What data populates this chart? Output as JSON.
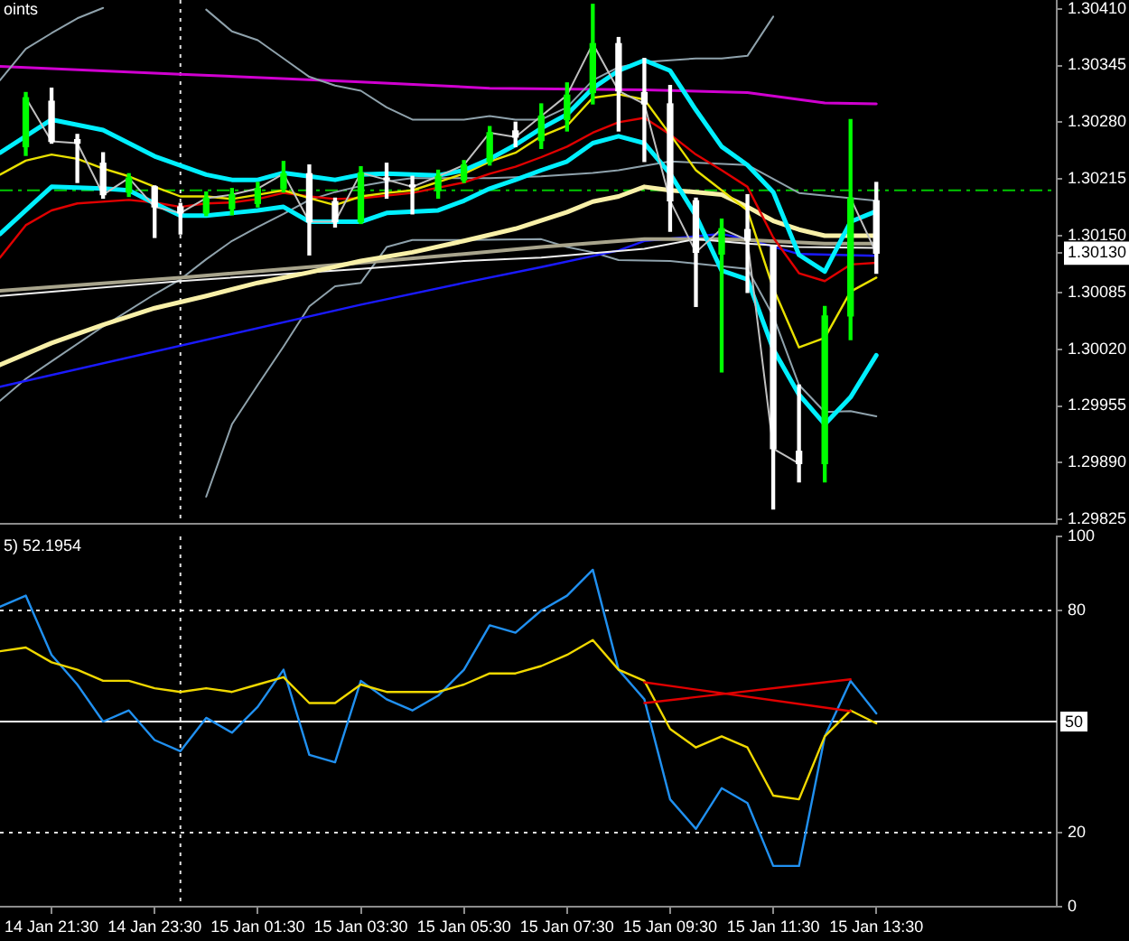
{
  "chart_data": [
    {
      "type": "candlestick",
      "annotations": [
        "oints"
      ],
      "x": [
        "--01-14T21:00",
        "--01-14T21:30",
        "--01-14T22:00",
        "--01-14T22:30",
        "--01-14T23:00",
        "--01-14T23:30",
        "--01-15T00:00",
        "--01-15T00:30",
        "--01-15T01:00",
        "--01-15T01:30",
        "--01-15T02:00",
        "--01-15T02:30",
        "--01-15T03:00",
        "--01-15T03:30",
        "--01-15T04:00",
        "--01-15T04:30",
        "--01-15T05:00",
        "--01-15T05:30",
        "--01-15T06:00",
        "--01-15T06:30",
        "--01-15T07:00",
        "--01-15T07:30",
        "--01-15T08:00",
        "--01-15T08:30",
        "--01-15T09:00",
        "--01-15T09:30",
        "--01-15T10:00",
        "--01-15T10:30",
        "--01-15T11:00",
        "--01-15T11:30",
        "--01-15T12:00",
        "--01-15T12:30",
        "--01-15T13:00",
        "--01-15T13:30"
      ],
      "ohlc": [
        [
          1.30252,
          1.30314,
          1.30242,
          1.30308
        ],
        [
          1.30304,
          1.30319,
          1.30256,
          1.30258
        ],
        [
          1.3026,
          1.30266,
          1.30211,
          1.30256
        ],
        [
          1.30233,
          1.30245,
          1.30193,
          1.30197
        ],
        [
          1.302,
          1.30221,
          1.30195,
          1.30216
        ],
        [
          1.30206,
          1.30207,
          1.30148,
          1.30183
        ],
        [
          1.30183,
          1.30187,
          1.30152,
          1.30176
        ],
        [
          1.30176,
          1.302,
          1.30173,
          1.30193
        ],
        [
          1.30181,
          1.30204,
          1.30174,
          1.30197
        ],
        [
          1.30187,
          1.30211,
          1.30183,
          1.30204
        ],
        [
          1.30204,
          1.30235,
          1.302,
          1.30221
        ],
        [
          1.30221,
          1.30231,
          1.30128,
          1.30166
        ],
        [
          1.30189,
          1.30193,
          1.3016,
          1.30166
        ],
        [
          1.30166,
          1.30229,
          1.30164,
          1.30222
        ],
        [
          1.30216,
          1.30233,
          1.30193,
          1.30214
        ],
        [
          1.30208,
          1.30218,
          1.30175,
          1.30206
        ],
        [
          1.30202,
          1.30225,
          1.30193,
          1.30218
        ],
        [
          1.30214,
          1.30236,
          1.30211,
          1.30231
        ],
        [
          1.30235,
          1.30275,
          1.30231,
          1.30268
        ],
        [
          1.3027,
          1.3028,
          1.30252,
          1.30263
        ],
        [
          1.30259,
          1.30301,
          1.3025,
          1.30287
        ],
        [
          1.30283,
          1.30325,
          1.3027,
          1.30311
        ],
        [
          1.30314,
          1.30415,
          1.30301,
          1.3037
        ],
        [
          1.3037,
          1.30377,
          1.3027,
          1.30316
        ],
        [
          1.30314,
          1.30353,
          1.30235,
          1.30301
        ],
        [
          1.30301,
          1.30322,
          1.30155,
          1.3019
        ],
        [
          1.3019,
          1.30193,
          1.30069,
          1.30131
        ],
        [
          1.30129,
          1.30169,
          1.29994,
          1.30158
        ],
        [
          1.30157,
          1.30197,
          1.30085,
          1.30145
        ],
        [
          1.30138,
          1.30138,
          1.29837,
          1.29906
        ],
        [
          1.29903,
          1.29979,
          1.29868,
          1.29889
        ],
        [
          1.29889,
          1.30069,
          1.29868,
          1.30058
        ],
        [
          1.30058,
          1.30283,
          1.30031,
          1.30193
        ],
        [
          1.3019,
          1.30211,
          1.30107,
          1.3013
        ]
      ],
      "colors": [
        "#00ff00",
        "#ffffff",
        "#ffffff",
        "#ffffff",
        "#00ff00",
        "#ffffff",
        "#ffffff",
        "#00ff00",
        "#00ff00",
        "#00ff00",
        "#00ff00",
        "#ffffff",
        "#ffffff",
        "#00ff00",
        "#ffffff",
        "#ffffff",
        "#00ff00",
        "#00ff00",
        "#00ff00",
        "#ffffff",
        "#00ff00",
        "#00ff00",
        "#00ff00",
        "#ffffff",
        "#ffffff",
        "#ffffff",
        "#ffffff",
        "#00ff00",
        "#ffffff",
        "#ffffff",
        "#ffffff",
        "#00ff00",
        "#00ff00",
        "#ffffff"
      ],
      "series": [
        {
          "type": "line",
          "color": "#d000d0",
          "x": [
            "--01-14T20:30",
            "--01-15T00:00",
            "--01-15T03:30",
            "--01-15T06:00",
            "--01-15T09:00",
            "--01-15T11:00",
            "--01-15T12:30",
            "--01-15T13:30"
          ],
          "values": [
            1.30344,
            1.30335,
            1.30326,
            1.30319,
            1.30317,
            1.30314,
            1.30302,
            1.30301
          ]
        },
        {
          "type": "line",
          "color": "#8fa2ac",
          "x": [
            "--01-14T20:30",
            "--01-14T21:00",
            "--01-14T21:30",
            "--01-14T22:00",
            "--01-14T22:30",
            "--01-14T23:00",
            "--01-14T23:30",
            "--01-15T00:00",
            "--01-15T00:30",
            "--01-15T01:00",
            "--01-15T01:30",
            "--01-15T02:00",
            "--01-15T02:30",
            "--01-15T03:00",
            "--01-15T03:30",
            "--01-15T04:00",
            "--01-15T04:30",
            "--01-15T05:00",
            "--01-15T05:30",
            "--01-15T06:00",
            "--01-15T06:30",
            "--01-15T07:00",
            "--01-15T07:30",
            "--01-15T08:00",
            "--01-15T08:30",
            "--01-15T09:00",
            "--01-15T09:30",
            "--01-15T10:00",
            "--01-15T10:30",
            "--01-15T11:00",
            "--01-15T11:30"
          ],
          "values": [
            1.30328,
            1.30364,
            1.30382,
            1.30399,
            1.30411,
            null,
            null,
            null,
            1.30409,
            1.30384,
            1.30374,
            1.30353,
            1.30332,
            1.30322,
            1.30316,
            1.30297,
            1.30283,
            1.30283,
            1.30283,
            1.30287,
            1.30283,
            1.30283,
            1.30297,
            1.30328,
            1.30343,
            1.30349,
            1.30351,
            1.30353,
            1.30353,
            1.30356,
            1.30401
          ]
        },
        {
          "type": "line",
          "color": "#8fa2ac",
          "x": [
            "--01-14T20:30",
            "--01-14T21:00",
            "--01-14T21:30",
            "--01-14T22:30",
            "--01-14T23:30",
            "--01-15T00:00",
            "--01-15T00:30",
            "--01-15T01:00",
            "--01-15T01:30",
            "--01-15T02:00",
            "--01-15T02:30",
            "--01-15T03:00",
            "--01-15T03:30",
            "--01-15T04:00",
            "--01-15T04:30",
            "--01-15T06:00",
            "--01-15T07:00",
            "--01-15T08:00",
            "--01-15T08:30",
            "--01-15T09:30",
            "--01-15T11:00",
            "--01-15T12:00",
            "--01-15T13:30"
          ],
          "values": [
            1.29961,
            1.29986,
            1.30006,
            1.30046,
            1.30083,
            1.301,
            1.30123,
            1.30144,
            1.3016,
            1.30175,
            1.30191,
            1.302,
            1.30207,
            1.30212,
            1.30216,
            1.30216,
            1.30218,
            1.30222,
            1.30225,
            1.30235,
            1.30231,
            1.30199,
            1.3019
          ]
        },
        {
          "type": "line",
          "color": "#8fa2ac",
          "x": [
            "--01-15T00:30",
            "--01-15T01:00",
            "--01-15T01:30",
            "--01-15T02:00",
            "--01-15T02:30",
            "--01-15T03:00",
            "--01-15T03:30",
            "--01-15T04:00",
            "--01-15T04:30",
            "--01-15T05:30",
            "--01-15T07:00",
            "--01-15T07:30",
            "--01-15T08:00",
            "--01-15T08:30",
            "--01-15T09:30",
            "--01-15T11:00",
            "--01-15T11:30",
            "--01-15T12:00",
            "--01-15T12:30",
            "--01-15T13:00",
            "--01-15T13:30"
          ],
          "values": [
            1.29851,
            1.29934,
            1.29979,
            1.30023,
            1.30069,
            1.30092,
            1.30096,
            1.30137,
            1.30145,
            1.30145,
            1.30146,
            1.30137,
            1.30131,
            1.30122,
            1.30121,
            1.30112,
            1.30058,
            1.29979,
            1.29948,
            1.29949,
            1.29943
          ]
        },
        {
          "type": "line",
          "color": "#1a1aff",
          "x": [
            "--01-14T20:30",
            "--01-15T03:30",
            "--01-15T05:30",
            "--01-15T07:00",
            "--01-15T08:30",
            "--01-15T09:00",
            "--01-15T10:30",
            "--01-15T11:00",
            "--01-15T12:00",
            "--01-15T13:30"
          ],
          "values": [
            1.29977,
            1.30071,
            1.30096,
            1.30114,
            1.30133,
            1.30144,
            1.30152,
            1.30146,
            1.30129,
            1.30127
          ]
        },
        {
          "type": "line",
          "color": "#a8a48c",
          "x": [
            "--01-14T20:30",
            "--01-15T00:00",
            "--01-15T03:30",
            "--01-15T05:30",
            "--01-15T07:00",
            "--01-15T09:00",
            "--01-15T10:30",
            "--01-15T11:00",
            "--01-15T12:30",
            "--01-15T13:30"
          ],
          "values": [
            1.30087,
            1.30102,
            1.30119,
            1.30129,
            1.30137,
            1.30146,
            1.30146,
            1.30145,
            1.30141,
            1.30141
          ]
        },
        {
          "type": "line",
          "color": "#f0f0f0",
          "x": [
            "--01-14T20:30",
            "--01-15T00:00",
            "--01-15T03:30",
            "--01-15T05:30",
            "--01-15T07:00",
            "--01-15T09:00",
            "--01-15T10:00",
            "--01-15T11:00",
            "--01-15T12:00",
            "--01-15T13:30"
          ],
          "values": [
            1.30081,
            1.30098,
            1.30112,
            1.30121,
            1.30125,
            1.30135,
            1.30146,
            1.30141,
            1.30137,
            1.30136
          ]
        },
        {
          "type": "line",
          "color": "#f8f0a8",
          "x": [
            "--01-14T20:30",
            "--01-14T21:30",
            "--01-14T22:30",
            "--01-14T23:30",
            "--01-15T00:30",
            "--01-15T01:30",
            "--01-15T02:30",
            "--01-15T03:30",
            "--01-15T04:30",
            "--01-15T05:30",
            "--01-15T06:30",
            "--01-15T07:30",
            "--01-15T08:00",
            "--01-15T08:30",
            "--01-15T09:00",
            "--01-15T09:30",
            "--01-15T10:00",
            "--01-15T10:30",
            "--01-15T11:00",
            "--01-15T11:30",
            "--01-15T12:00",
            "--01-15T12:30",
            "--01-15T13:00",
            "--01-15T13:30"
          ],
          "values": [
            1.30002,
            1.30027,
            1.30048,
            1.30067,
            1.30081,
            1.30096,
            1.30108,
            1.30121,
            1.30131,
            1.30144,
            1.30158,
            1.30177,
            1.30189,
            1.30195,
            1.30206,
            1.30202,
            1.302,
            1.30197,
            1.30183,
            1.30167,
            1.30157,
            1.3015,
            1.3015,
            1.3015
          ]
        },
        {
          "type": "line",
          "color": "#e00000",
          "x": [
            "--01-14T20:30",
            "--01-14T21:00",
            "--01-14T21:30",
            "--01-14T22:00",
            "--01-14T23:00",
            "--01-14T23:30",
            "--01-15T00:00",
            "--01-15T00:30",
            "--01-15T01:00",
            "--01-15T01:30",
            "--01-15T02:00",
            "--01-15T02:30",
            "--01-15T03:00",
            "--01-15T03:30",
            "--01-15T04:30",
            "--01-15T05:30",
            "--01-15T06:00",
            "--01-15T06:30",
            "--01-15T07:00",
            "--01-15T07:30",
            "--01-15T08:00",
            "--01-15T08:30",
            "--01-15T09:00",
            "--01-15T09:30",
            "--01-15T10:00",
            "--01-15T10:30",
            "--01-15T11:00",
            "--01-15T11:30",
            "--01-15T12:00",
            "--01-15T12:30",
            "--01-15T13:00",
            "--01-15T13:30"
          ],
          "values": [
            1.30125,
            1.30162,
            1.30179,
            1.30187,
            1.30191,
            1.30188,
            1.30183,
            1.30187,
            1.30188,
            1.30192,
            1.30199,
            1.30195,
            1.30192,
            1.30193,
            1.30199,
            1.30211,
            1.30221,
            1.30229,
            1.3024,
            1.30252,
            1.30268,
            1.3028,
            1.30285,
            1.30266,
            1.30243,
            1.30225,
            1.30206,
            1.30148,
            1.30107,
            1.30098,
            1.30117,
            1.30119
          ]
        },
        {
          "type": "line",
          "color": "#e8e000",
          "x": [
            "--01-14T20:30",
            "--01-14T21:00",
            "--01-14T21:30",
            "--01-14T22:00",
            "--01-14T22:30",
            "--01-14T23:00",
            "--01-14T23:30",
            "--01-15T00:00",
            "--01-15T00:30",
            "--01-15T01:00",
            "--01-15T01:30",
            "--01-15T02:00",
            "--01-15T02:30",
            "--01-15T03:00",
            "--01-15T03:30",
            "--01-15T04:00",
            "--01-15T04:30",
            "--01-15T05:30",
            "--01-15T06:00",
            "--01-15T06:30",
            "--01-15T07:00",
            "--01-15T07:30",
            "--01-15T08:00",
            "--01-15T08:30",
            "--01-15T09:00",
            "--01-15T09:30",
            "--01-15T10:00",
            "--01-15T10:30",
            "--01-15T11:00",
            "--01-15T11:30",
            "--01-15T12:00",
            "--01-15T12:30",
            "--01-15T13:00",
            "--01-15T13:30"
          ],
          "values": [
            1.3022,
            1.30236,
            1.30243,
            1.30238,
            1.30227,
            1.30218,
            1.30206,
            1.30195,
            1.30195,
            1.30192,
            1.30197,
            1.30202,
            1.30193,
            1.30185,
            1.30195,
            1.30199,
            1.30202,
            1.30221,
            1.30235,
            1.30245,
            1.30264,
            1.30276,
            1.30308,
            1.30312,
            1.30306,
            1.30266,
            1.30225,
            1.30202,
            1.30179,
            1.3009,
            1.30022,
            1.30033,
            1.30086,
            1.30102
          ]
        },
        {
          "type": "line",
          "color": "#00f0ff",
          "x": [
            "--01-14T20:30",
            "--01-14T21:30",
            "--01-14T22:30",
            "--01-14T23:30",
            "--01-15T00:30",
            "--01-15T01:00",
            "--01-15T01:30",
            "--01-15T02:00",
            "--01-15T02:30",
            "--01-15T03:00",
            "--01-15T03:30",
            "--01-15T04:00",
            "--01-15T05:00",
            "--01-15T05:30",
            "--01-15T06:00",
            "--01-15T06:30",
            "--01-15T07:00",
            "--01-15T07:30",
            "--01-15T08:00",
            "--01-15T08:30",
            "--01-15T09:00",
            "--01-15T09:30",
            "--01-15T10:00",
            "--01-15T10:30",
            "--01-15T11:00",
            "--01-15T11:30",
            "--01-15T12:00",
            "--01-15T12:30",
            "--01-15T13:00",
            "--01-15T13:30"
          ],
          "values": [
            1.30245,
            1.30283,
            1.30271,
            1.30241,
            1.3022,
            1.30214,
            1.30214,
            1.30222,
            1.30218,
            1.30214,
            1.3022,
            1.30221,
            1.30219,
            1.30225,
            1.30238,
            1.30254,
            1.30273,
            1.30289,
            1.30319,
            1.30339,
            1.30351,
            1.30339,
            1.30294,
            1.30252,
            1.30231,
            1.302,
            1.30128,
            1.30109,
            1.30166,
            1.30178
          ]
        },
        {
          "type": "line",
          "color": "#00f0ff",
          "x": [
            "--01-14T20:30",
            "--01-14T21:00",
            "--01-14T21:30",
            "--01-14T22:30",
            "--01-14T23:00",
            "--01-14T23:30",
            "--01-15T00:00",
            "--01-15T00:30",
            "--01-15T01:00",
            "--01-15T01:30",
            "--01-15T02:00",
            "--01-15T02:30",
            "--01-15T03:00",
            "--01-15T03:30",
            "--01-15T04:00",
            "--01-15T05:00",
            "--01-15T05:30",
            "--01-15T06:00",
            "--01-15T06:30",
            "--01-15T07:00",
            "--01-15T07:30",
            "--01-15T08:00",
            "--01-15T08:30",
            "--01-15T09:00",
            "--01-15T09:30",
            "--01-15T10:00",
            "--01-15T10:30",
            "--01-15T11:00",
            "--01-15T11:30",
            "--01-15T12:00",
            "--01-15T12:30",
            "--01-15T13:00",
            "--01-15T13:30"
          ],
          "values": [
            1.30152,
            1.30179,
            1.30206,
            1.30204,
            1.30202,
            1.30187,
            1.30173,
            1.30173,
            1.30176,
            1.30179,
            1.30183,
            1.30166,
            1.30166,
            1.30166,
            1.30176,
            1.30179,
            1.3019,
            1.30204,
            1.30214,
            1.30225,
            1.30235,
            1.30256,
            1.30264,
            1.30256,
            1.30221,
            1.30173,
            1.3011,
            1.301,
            1.3002,
            1.29968,
            1.29934,
            1.29965,
            1.30013
          ]
        },
        {
          "type": "line",
          "color": "#c0c0c0",
          "values": [
            1.30308,
            1.30258,
            1.30256,
            1.30197,
            1.30216,
            1.30183,
            1.30176,
            1.30193,
            1.30197,
            1.30204,
            1.30221,
            1.30166,
            1.30166,
            1.30222,
            1.30214,
            1.30206,
            1.30218,
            1.30231,
            1.30268,
            1.30263,
            1.30287,
            1.30311,
            1.3037,
            1.30316,
            1.30301,
            1.3019,
            1.30131,
            1.30158,
            1.30145,
            1.29906,
            1.29889,
            null,
            1.30193,
            1.3013
          ]
        }
      ],
      "xlim": [
        "--01-14T20:30",
        "--01-15T17:00"
      ],
      "ylim": [
        1.2982,
        1.3042
      ],
      "yticks": [
        {
          "value": 1.3041,
          "label": "1.30410"
        },
        1.30345,
        {
          "value": 1.3028,
          "label": "1.30280"
        },
        1.30215,
        {
          "value": 1.3015,
          "label": "1.30150"
        },
        {
          "value": 1.3013,
          "label": "1.30130"
        },
        1.30085,
        {
          "value": 1.3002,
          "label": "1.30020"
        },
        1.29955,
        {
          "value": 1.2989,
          "label": "1.29890"
        },
        1.29825
      ],
      "ref_lines": [
        {
          "axis": "y",
          "value": 1.30202,
          "color": "#00c800",
          "line_style": "dashed"
        },
        {
          "axis": "x",
          "value": "--01-15T00:00",
          "color": "#e0e0e0",
          "line_style": "dotted"
        }
      ],
      "tick_labels": "y"
    },
    {
      "type": "line",
      "annotations": [
        "5) 52.1954"
      ],
      "x": [
        "--01-14T20:30",
        "--01-14T21:00",
        "--01-14T21:30",
        "--01-14T22:00",
        "--01-14T22:30",
        "--01-14T23:00",
        "--01-14T23:30",
        "--01-15T00:00",
        "--01-15T00:30",
        "--01-15T01:00",
        "--01-15T01:30",
        "--01-15T02:00",
        "--01-15T02:30",
        "--01-15T03:00",
        "--01-15T03:30",
        "--01-15T04:00",
        "--01-15T04:30",
        "--01-15T05:00",
        "--01-15T05:30",
        "--01-15T06:00",
        "--01-15T06:30",
        "--01-15T07:00",
        "--01-15T07:30",
        "--01-15T08:00",
        "--01-15T08:30",
        "--01-15T09:00",
        "--01-15T09:30",
        "--01-15T10:00",
        "--01-15T10:30",
        "--01-15T11:00",
        "--01-15T11:30",
        "--01-15T12:00",
        "--01-15T12:30",
        "--01-15T13:00",
        "--01-15T13:30"
      ],
      "series": [
        {
          "color": "#2090f0",
          "values": [
            81,
            84,
            68,
            60,
            50,
            53,
            45,
            42,
            51,
            47,
            54,
            64,
            41,
            39,
            61,
            56,
            53,
            57,
            64,
            76,
            74,
            80,
            84,
            91,
            64,
            56,
            29,
            21,
            32,
            28,
            11,
            11,
            46,
            61,
            52.2
          ]
        },
        {
          "color": "#f0d800",
          "values": [
            69,
            70,
            66,
            64,
            61,
            61,
            59,
            58,
            59,
            58,
            60,
            62,
            55,
            55,
            60,
            58,
            58,
            58,
            60,
            63,
            63,
            65,
            68,
            72,
            64,
            61,
            48,
            43,
            46,
            43,
            30,
            29,
            46,
            53,
            49.5
          ]
        },
        {
          "color": "#e00000",
          "x": [
            "--01-15T09:00",
            "--01-15T13:00"
          ],
          "values": [
            60.6,
            52.8
          ]
        },
        {
          "color": "#e00000",
          "x": [
            "--01-15T09:00",
            "--01-15T13:00"
          ],
          "values": [
            55,
            61.4
          ]
        }
      ],
      "xlim": [
        "--01-14T20:30",
        "--01-15T17:00"
      ],
      "ylim": [
        0,
        100
      ],
      "xticks": [
        {
          "value": "--01-14T21:30",
          "label": "14 Jan 21:30"
        },
        {
          "value": "--01-14T23:30",
          "label": "14 Jan 23:30"
        },
        {
          "value": "--01-15T01:30",
          "label": "15 Jan 01:30"
        },
        {
          "value": "--01-15T03:30",
          "label": "15 Jan 03:30"
        },
        {
          "value": "--01-15T05:30",
          "label": "15 Jan 05:30"
        },
        {
          "value": "--01-15T07:30",
          "label": "15 Jan 07:30"
        },
        {
          "value": "--01-15T09:30",
          "label": "15 Jan 09:30"
        },
        {
          "value": "--01-15T11:30",
          "label": "15 Jan 11:30"
        },
        {
          "value": "--01-15T13:30",
          "label": "15 Jan 13:30"
        }
      ],
      "yticks": [
        0,
        20,
        80,
        100
      ],
      "ref_lines": [
        {
          "axis": "y",
          "value": 80,
          "color": "#e0e0e0",
          "line_style": "dotted"
        },
        {
          "axis": "y",
          "value": 50,
          "color": "#ffffff",
          "label": "50"
        },
        {
          "axis": "y",
          "value": 20,
          "color": "#e0e0e0",
          "line_style": "dotted"
        },
        {
          "axis": "x",
          "value": "--01-15T00:00",
          "color": "#e0e0e0",
          "line_style": "dotted"
        }
      ]
    }
  ]
}
